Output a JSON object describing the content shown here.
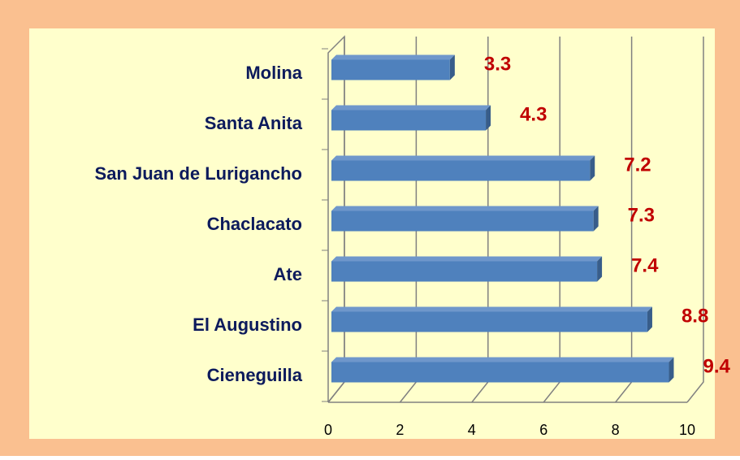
{
  "chart_data": {
    "type": "bar",
    "orientation": "horizontal",
    "categories": [
      "Molina",
      "Santa Anita",
      "San Juan de Lurigancho",
      "Chaclacato",
      "Ate",
      "El Augustino",
      "Cieneguilla"
    ],
    "values": [
      3.3,
      4.3,
      7.2,
      7.3,
      7.4,
      8.8,
      9.4
    ],
    "color": "#4f81bd",
    "label_color": "#c00000",
    "xlim": [
      0,
      10
    ],
    "xticks": [
      0,
      2,
      4,
      6,
      8,
      10
    ],
    "grid": true
  }
}
